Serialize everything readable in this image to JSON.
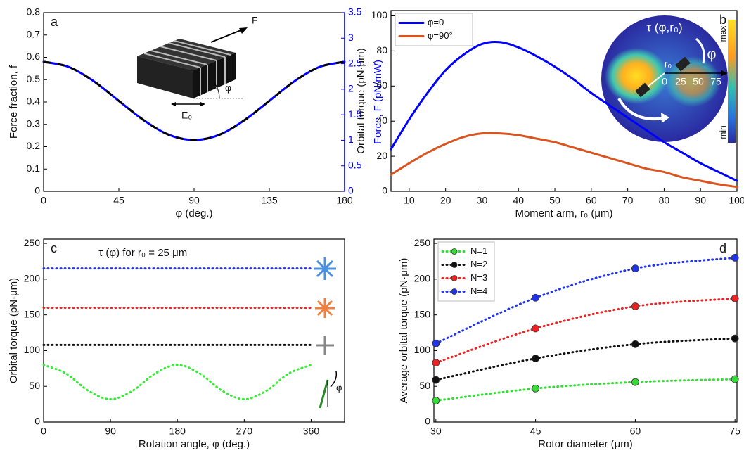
{
  "chart_data": [
    {
      "type": "line",
      "panel_label": "a",
      "x": [
        0,
        15,
        30,
        45,
        60,
        75,
        90,
        105,
        120,
        135,
        150,
        165,
        180
      ],
      "series": [
        {
          "color": "#0000ff",
          "dash_color": "#000000",
          "style": "dashed",
          "values": [
            0.58,
            0.557,
            0.493,
            0.405,
            0.318,
            0.253,
            0.23,
            0.253,
            0.318,
            0.405,
            0.493,
            0.557,
            0.58
          ]
        }
      ],
      "xlim": [
        0,
        180
      ],
      "xticks": [
        0,
        45,
        90,
        135,
        180
      ],
      "ylim": [
        0,
        0.8
      ],
      "yticks": [
        0,
        0.1,
        0.2,
        0.3,
        0.4,
        0.5,
        0.6,
        0.7,
        0.8
      ],
      "y2lim": [
        0,
        3.5
      ],
      "y2ticks": [
        0,
        0.5,
        1,
        1.5,
        2,
        2.5,
        3,
        3.5
      ],
      "y2_color": "#0000ff",
      "xlabel": "φ (deg.)",
      "ylabel": "Force fraction, f",
      "y2label": "Force, F (pN/mW)",
      "annotations": [
        "F",
        "φ",
        "E₀"
      ]
    },
    {
      "type": "line",
      "panel_label": "b",
      "x": [
        5,
        10,
        15,
        20,
        25,
        30,
        35,
        40,
        45,
        50,
        55,
        60,
        65,
        70,
        75,
        80,
        85,
        90,
        95,
        100
      ],
      "series": [
        {
          "name": "φ=0",
          "color": "#0000ff",
          "style": "solid",
          "values": [
            24,
            41,
            56,
            69,
            78,
            84,
            85,
            82,
            77,
            71,
            64,
            56,
            49,
            42,
            35,
            28,
            22,
            16,
            11,
            6
          ]
        },
        {
          "name": "φ=90°",
          "color": "#d9541e",
          "style": "solid",
          "values": [
            9.5,
            16,
            22,
            27,
            31,
            33,
            33,
            32,
            30,
            28,
            25,
            22,
            19,
            16,
            13,
            11,
            8,
            6,
            4,
            2.5
          ]
        }
      ],
      "xlim": [
        5,
        100
      ],
      "xticks": [
        10,
        20,
        30,
        40,
        50,
        60,
        70,
        80,
        90,
        100
      ],
      "ylim": [
        0,
        103
      ],
      "yticks": [
        0,
        20,
        40,
        60,
        80,
        100
      ],
      "xlabel": "Moment arm, r₀ (μm)",
      "ylabel": "Orbital torque (pN·μm)",
      "legend": "upper left",
      "annotations": [
        "τ (φ,r₀)",
        "max",
        "min",
        "0",
        "25",
        "50",
        "75",
        "r₀",
        "φ"
      ]
    },
    {
      "type": "line",
      "panel_label": "c",
      "title": "τ (φ) for r₀ = 25 μm",
      "x": [
        0,
        30,
        60,
        90,
        120,
        150,
        180,
        210,
        240,
        270,
        300,
        330,
        360
      ],
      "series": [
        {
          "color": "#2233ee",
          "style": "dotted",
          "values": [
            215,
            215,
            215,
            215,
            215,
            215,
            215,
            215,
            215,
            215,
            215,
            215,
            215
          ]
        },
        {
          "color": "#ee2222",
          "style": "dotted",
          "values": [
            160,
            160,
            160,
            160,
            160,
            160,
            160,
            160,
            160,
            160,
            160,
            160,
            160
          ]
        },
        {
          "color": "#111111",
          "style": "dotted",
          "values": [
            108,
            108,
            108,
            108,
            108,
            108,
            108,
            108,
            108,
            108,
            108,
            108,
            108
          ]
        },
        {
          "color": "#33ee33",
          "style": "dotted",
          "values": [
            80,
            68,
            44,
            32,
            44,
            68,
            80,
            68,
            44,
            32,
            44,
            68,
            80
          ]
        }
      ],
      "xlim": [
        0,
        405
      ],
      "xticks": [
        0,
        90,
        180,
        270,
        360
      ],
      "ylim": [
        0,
        256
      ],
      "yticks": [
        0,
        50,
        100,
        150,
        200,
        250
      ],
      "xlabel": "Rotation angle, φ (deg.)",
      "ylabel": "Orbital torque (pN·μm)",
      "annotations": [
        "φ"
      ]
    },
    {
      "type": "line",
      "panel_label": "d",
      "x": [
        30,
        45,
        60,
        75
      ],
      "series": [
        {
          "name": "N=1",
          "color": "#33dd33",
          "style": "dotted",
          "markers": true,
          "values": [
            30,
            47,
            56,
            60
          ]
        },
        {
          "name": "N=2",
          "color": "#111111",
          "style": "dotted",
          "markers": true,
          "values": [
            59,
            89,
            109,
            117
          ]
        },
        {
          "name": "N=3",
          "color": "#ee2222",
          "style": "dotted",
          "markers": true,
          "values": [
            83,
            131,
            162,
            173
          ]
        },
        {
          "name": "N=4",
          "color": "#2233ee",
          "style": "dotted",
          "markers": true,
          "values": [
            110,
            174,
            215,
            230
          ]
        }
      ],
      "xlim": [
        29.7,
        75.3
      ],
      "xticks": [
        30,
        45,
        60,
        75
      ],
      "ylim": [
        0,
        256
      ],
      "yticks": [
        0,
        50,
        100,
        150,
        200,
        250
      ],
      "xlabel": "Rotor diameter (μm)",
      "ylabel": "Average orbital torque (pN·μm)",
      "legend": "upper left"
    }
  ]
}
